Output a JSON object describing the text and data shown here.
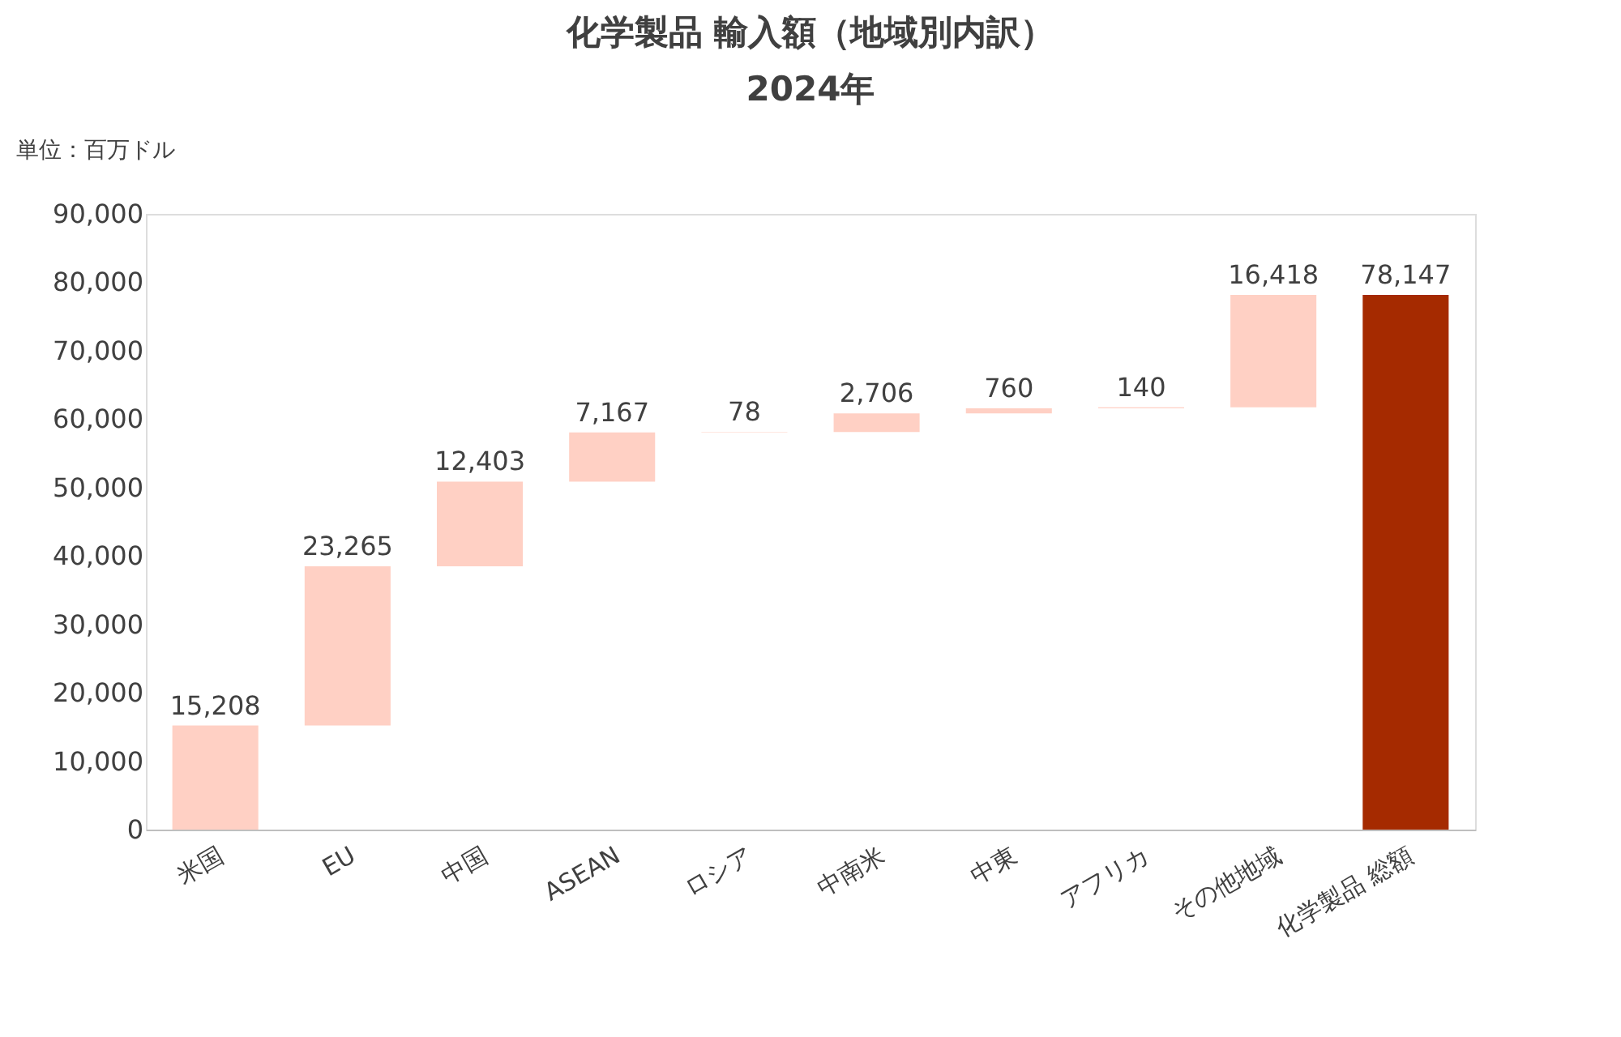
{
  "chart_data": {
    "type": "bar",
    "title": "化学製品 輸入額（地域別内訳）",
    "subtitle": "2024年",
    "ylabel": "単位：百万ドル",
    "categories": [
      "米国",
      "EU",
      "中国",
      "ASEAN",
      "ロシア",
      "中南米",
      "中東",
      "アフリカ",
      "その他地域",
      "化学製品 総額"
    ],
    "values": [
      15208,
      23265,
      12403,
      7167,
      78,
      2706,
      760,
      140,
      16418,
      78147
    ],
    "base": [
      0,
      15208,
      38473,
      50876,
      58043,
      58121,
      60827,
      61587,
      61727,
      0
    ],
    "colors": [
      "#ffd0c4",
      "#ffd0c4",
      "#ffd0c4",
      "#ffd0c4",
      "#ffd0c4",
      "#ffd0c4",
      "#ffd0c4",
      "#ffd0c4",
      "#ffd0c4",
      "#a52a00"
    ],
    "value_labels": [
      "15,208",
      "23,265",
      "12,403",
      "7,167",
      "78",
      "2,706",
      "760",
      "140",
      "16,418",
      "78,147"
    ],
    "ylim": [
      0,
      90000
    ],
    "yticks": [
      0,
      {
        "value": 10000,
        "label": "10,000"
      },
      {
        "value": 20000,
        "label": "20,000"
      },
      {
        "value": 30000,
        "label": "30,000"
      },
      {
        "value": 40000,
        "label": "40,000"
      },
      {
        "value": 50000,
        "label": "50,000"
      },
      {
        "value": 60000,
        "label": "60,000"
      },
      {
        "value": 70000,
        "label": "70,000"
      },
      {
        "value": 80000,
        "label": "80,000"
      },
      {
        "value": 90000,
        "label": "90,000"
      }
    ],
    "grid": false
  }
}
